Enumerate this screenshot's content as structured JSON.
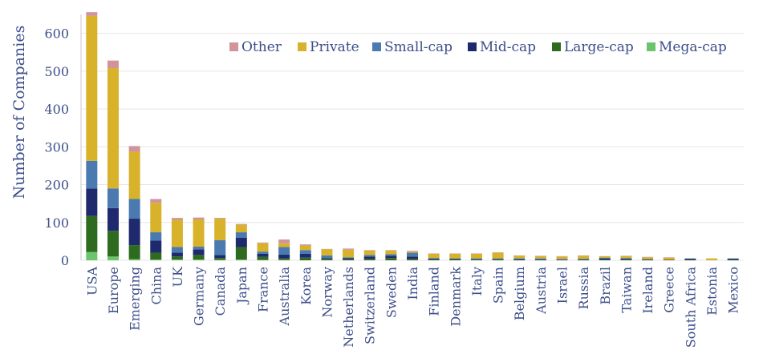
{
  "chart_data": {
    "type": "bar",
    "stacked": true,
    "ylabel": "Number of Companies",
    "xlabel": "",
    "ylim": [
      0,
      650
    ],
    "yticks": [
      0,
      100,
      200,
      300,
      400,
      500,
      600
    ],
    "grid": true,
    "legend_position": "top-right",
    "categories": [
      "USA",
      "Europe",
      "Emerging",
      "China",
      "UK",
      "Germany",
      "Canada",
      "Japan",
      "France",
      "Australia",
      "Korea",
      "Norway",
      "Netherlands",
      "Switzerland",
      "Sweden",
      "India",
      "Finland",
      "Denmark",
      "Italy",
      "Spain",
      "Belgium",
      "Austria",
      "Israel",
      "Russia",
      "Brazil",
      "Taiwan",
      "Ireland",
      "Greece",
      "South Africa",
      "Estonia",
      "Mexico"
    ],
    "series": [
      {
        "name": "Mega-cap",
        "color": "#6cc46c",
        "values": [
          22,
          10,
          3,
          2,
          2,
          2,
          1,
          2,
          1,
          1,
          0,
          0,
          0,
          0,
          0,
          0,
          0,
          0,
          0,
          0,
          0,
          0,
          0,
          0,
          0,
          0,
          0,
          0,
          0,
          0,
          0
        ]
      },
      {
        "name": "Large-cap",
        "color": "#2e6b1e",
        "values": [
          95,
          68,
          37,
          18,
          8,
          12,
          5,
          33,
          8,
          4,
          7,
          4,
          3,
          4,
          6,
          4,
          2,
          2,
          2,
          2,
          1,
          1,
          0,
          1,
          2,
          2,
          1,
          0,
          1,
          0,
          1
        ]
      },
      {
        "name": "Mid-cap",
        "color": "#1f2a6e",
        "values": [
          73,
          60,
          70,
          32,
          10,
          15,
          8,
          25,
          8,
          10,
          10,
          2,
          3,
          6,
          6,
          6,
          2,
          2,
          1,
          1,
          2,
          1,
          1,
          1,
          3,
          2,
          1,
          1,
          3,
          0,
          3
        ]
      },
      {
        "name": "Small-cap",
        "color": "#4a7ab0",
        "values": [
          73,
          52,
          52,
          22,
          15,
          7,
          39,
          14,
          6,
          20,
          10,
          7,
          2,
          4,
          4,
          10,
          2,
          1,
          2,
          2,
          2,
          3,
          2,
          2,
          2,
          2,
          1,
          0,
          1,
          0,
          1
        ]
      },
      {
        "name": "Private",
        "color": "#d7b22a",
        "values": [
          383,
          318,
          125,
          78,
          72,
          72,
          57,
          20,
          22,
          10,
          12,
          16,
          20,
          12,
          10,
          3,
          11,
          12,
          12,
          15,
          7,
          6,
          7,
          8,
          4,
          5,
          5,
          6,
          0,
          5,
          0
        ]
      },
      {
        "name": "Other",
        "color": "#d1949b",
        "values": [
          10,
          20,
          15,
          10,
          5,
          5,
          2,
          2,
          2,
          10,
          3,
          1,
          3,
          1,
          1,
          2,
          1,
          1,
          1,
          1,
          1,
          1,
          1,
          1,
          0,
          1,
          1,
          1,
          0,
          0,
          0
        ]
      }
    ]
  }
}
